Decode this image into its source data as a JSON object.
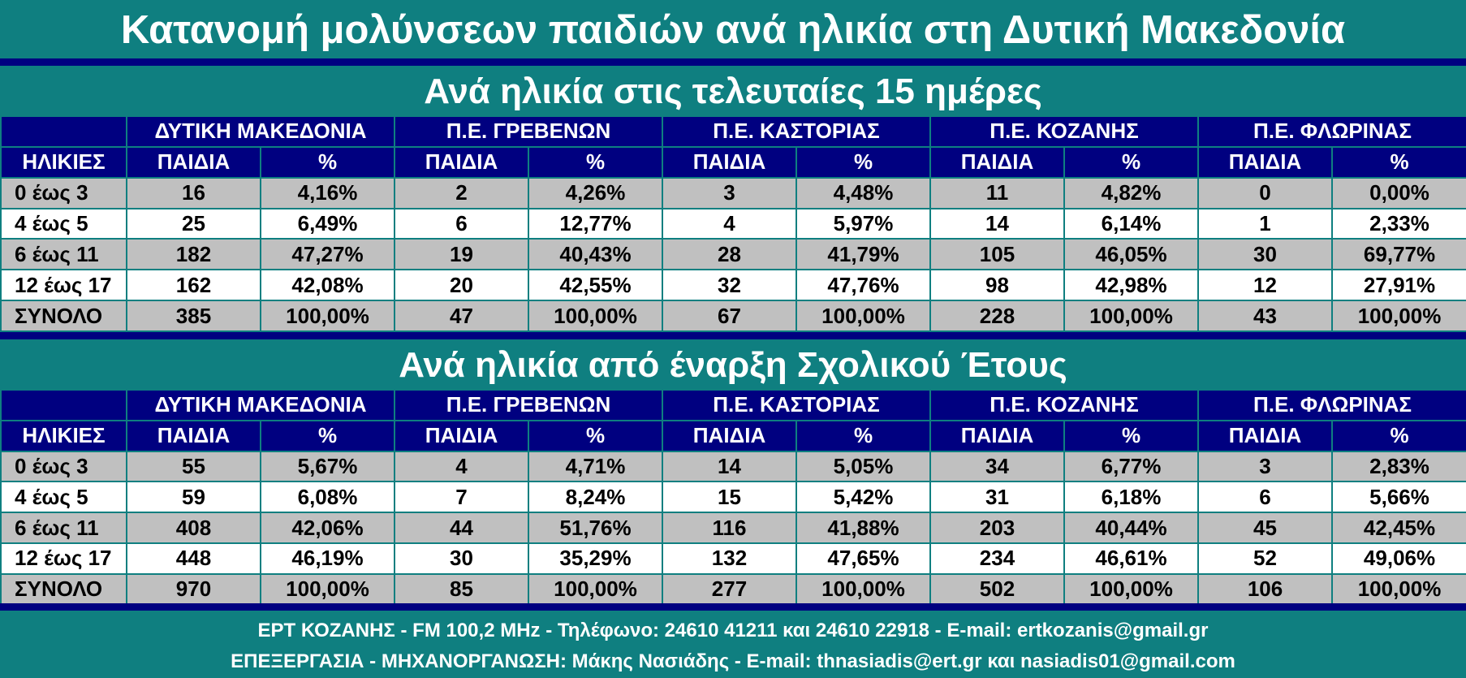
{
  "title": "Κατανομή μολύνσεων παιδιών ανά ηλικία στη Δυτική Μακεδονία",
  "regions": [
    "ΔΥΤΙΚΗ ΜΑΚΕΔΟΝΙΑ",
    "Π.Ε. ΓΡΕΒΕΝΩΝ",
    "Π.Ε. ΚΑΣΤΟΡΙΑΣ",
    "Π.Ε. ΚΟΖΑΝΗΣ",
    "Π.Ε. ΦΛΩΡΙΝΑΣ"
  ],
  "headers": {
    "ages": "ΗΛΙΚΙΕΣ",
    "children": "ΠΑΙΔΙΑ",
    "percent": "%"
  },
  "sections": [
    {
      "title": "Ανά ηλικία στις τελευταίες 15 ημέρες",
      "rows": [
        {
          "age": "0 έως 3",
          "cells": [
            "16",
            "4,16%",
            "2",
            "4,26%",
            "3",
            "4,48%",
            "11",
            "4,82%",
            "0",
            "0,00%"
          ]
        },
        {
          "age": "4 έως 5",
          "cells": [
            "25",
            "6,49%",
            "6",
            "12,77%",
            "4",
            "5,97%",
            "14",
            "6,14%",
            "1",
            "2,33%"
          ]
        },
        {
          "age": "6 έως 11",
          "cells": [
            "182",
            "47,27%",
            "19",
            "40,43%",
            "28",
            "41,79%",
            "105",
            "46,05%",
            "30",
            "69,77%"
          ]
        },
        {
          "age": "12 έως 17",
          "cells": [
            "162",
            "42,08%",
            "20",
            "42,55%",
            "32",
            "47,76%",
            "98",
            "42,98%",
            "12",
            "27,91%"
          ]
        },
        {
          "age": "ΣΥΝΟΛΟ",
          "cells": [
            "385",
            "100,00%",
            "47",
            "100,00%",
            "67",
            "100,00%",
            "228",
            "100,00%",
            "43",
            "100,00%"
          ]
        }
      ]
    },
    {
      "title": "Ανά ηλικία από έναρξη Σχολικού Έτους",
      "rows": [
        {
          "age": "0 έως 3",
          "cells": [
            "55",
            "5,67%",
            "4",
            "4,71%",
            "14",
            "5,05%",
            "34",
            "6,77%",
            "3",
            "2,83%"
          ]
        },
        {
          "age": "4 έως 5",
          "cells": [
            "59",
            "6,08%",
            "7",
            "8,24%",
            "15",
            "5,42%",
            "31",
            "6,18%",
            "6",
            "5,66%"
          ]
        },
        {
          "age": "6 έως 11",
          "cells": [
            "408",
            "42,06%",
            "44",
            "51,76%",
            "116",
            "41,88%",
            "203",
            "40,44%",
            "45",
            "42,45%"
          ]
        },
        {
          "age": "12 έως 17",
          "cells": [
            "448",
            "46,19%",
            "30",
            "35,29%",
            "132",
            "47,65%",
            "234",
            "46,61%",
            "52",
            "49,06%"
          ]
        },
        {
          "age": "ΣΥΝΟΛΟ",
          "cells": [
            "970",
            "100,00%",
            "85",
            "100,00%",
            "277",
            "100,00%",
            "502",
            "100,00%",
            "106",
            "100,00%"
          ]
        }
      ]
    }
  ],
  "footer": {
    "line1": "ΕΡΤ ΚΟΖΑΝΗΣ - FM 100,2 MHz - Τηλέφωνο:  24610 41211 και 24610 22918 - E-mail: ertkozanis@gmail.gr",
    "line2": "ΕΠΕΞΕΡΓΑΣΙΑ  -  ΜΗΧΑΝΟΡΓΑΝΩΣΗ: Μάκης Νασιάδης  -   E-mail: thnasiadis@ert.gr και nasiadis01@gmail.com"
  },
  "colors": {
    "teal": "#0f7f80",
    "navy": "#000080",
    "gray": "#c0c0c0",
    "white": "#ffffff"
  }
}
